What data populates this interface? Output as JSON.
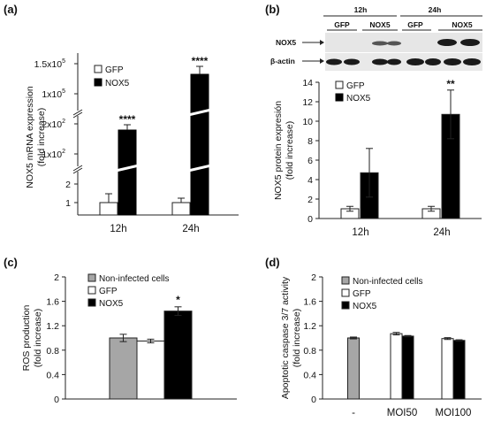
{
  "panels": {
    "a": {
      "label": "(a)",
      "ylabel_line1": "NOX5 mRNA expression",
      "ylabel_line2": "(fold increase)",
      "ticks_upper": [
        {
          "base": "1.5x10",
          "exp": "5"
        },
        {
          "base": "1x10",
          "exp": "5"
        }
      ],
      "ticks_middle": [
        {
          "base": "2x10",
          "exp": "2"
        },
        {
          "base": "1x10",
          "exp": "2"
        }
      ],
      "ticks_lower": [
        "2",
        "1"
      ]
    },
    "b": {
      "label": "(b)",
      "ylabel_line1": "NOX5 protein expresión",
      "ylabel_line2": "(fold increase)",
      "blot_time_12": "12h",
      "blot_time_24": "24h",
      "blot_lane_gfp": "GFP",
      "blot_lane_nox5": "NOX5",
      "blot_row_nox5": "NOX5",
      "blot_row_actin": "β-actin"
    },
    "c": {
      "label": "(c)",
      "ylabel_line1": "ROS production",
      "ylabel_line2": "(fold increase)"
    },
    "d": {
      "label": "(d)",
      "ylabel_line1": "Apoptotic caspase 3/7 activity",
      "ylabel_line2": "(fold increase)"
    }
  },
  "colors": {
    "gfp": "#ffffff",
    "nox5": "#000000",
    "non_infected": "#a6a6a6"
  },
  "chart_data": [
    {
      "panel": "a",
      "type": "bar",
      "axis_type": "broken",
      "categories": [
        "12h",
        "24h"
      ],
      "series": [
        {
          "name": "GFP",
          "values": [
            1.0,
            1.0
          ],
          "errors": [
            0.5,
            0.25
          ]
        },
        {
          "name": "NOX5",
          "values": [
            185,
            132000
          ],
          "errors": [
            12,
            14000
          ]
        }
      ],
      "annotations": [
        "****",
        "****"
      ],
      "ylim": [
        0,
        150000
      ],
      "yticks": [
        "1",
        "2",
        "1x10^2",
        "2x10^2",
        "1x10^5",
        "1.5x10^5"
      ],
      "legend_position": "upper-left"
    },
    {
      "panel": "b",
      "type": "bar",
      "categories": [
        "12h",
        "24h"
      ],
      "series": [
        {
          "name": "GFP",
          "values": [
            1.0,
            1.0
          ],
          "errors": [
            0.25,
            0.25
          ]
        },
        {
          "name": "NOX5",
          "values": [
            4.7,
            10.7
          ],
          "errors": [
            2.5,
            2.5
          ]
        }
      ],
      "annotations": [
        "",
        "**"
      ],
      "ylim": [
        0,
        14
      ],
      "yticks": [
        0,
        2,
        4,
        6,
        8,
        10,
        12,
        14
      ],
      "legend_position": "upper-left"
    },
    {
      "panel": "c",
      "type": "bar",
      "categories": [
        ""
      ],
      "series": [
        {
          "name": "Non-infected cells",
          "values": [
            1.0
          ],
          "errors": [
            0.06
          ]
        },
        {
          "name": "GFP",
          "values": [
            0.95
          ],
          "errors": [
            0.03
          ]
        },
        {
          "name": "NOX5",
          "values": [
            1.44
          ],
          "errors": [
            0.07
          ]
        }
      ],
      "annotations": [
        "*"
      ],
      "ylim": [
        0,
        2
      ],
      "yticks": [
        "0",
        "0.4",
        "0.8",
        "1.2",
        "1.6",
        "2"
      ],
      "legend_position": "upper-left"
    },
    {
      "panel": "d",
      "type": "bar",
      "categories": [
        "-",
        "MOI50",
        "MOI100"
      ],
      "series": [
        {
          "name": "Non-infected cells",
          "values": [
            1.0,
            null,
            null
          ],
          "errors": [
            0.015,
            null,
            null
          ]
        },
        {
          "name": "GFP",
          "values": [
            null,
            1.07,
            0.99
          ],
          "errors": [
            null,
            0.02,
            0.015
          ]
        },
        {
          "name": "NOX5",
          "values": [
            null,
            1.03,
            0.96
          ],
          "errors": [
            null,
            0.01,
            0.01
          ]
        }
      ],
      "ylim": [
        0,
        2
      ],
      "yticks": [
        "0",
        "0.4",
        "0.8",
        "1.2",
        "1.6",
        "2"
      ],
      "legend_position": "upper-left"
    }
  ]
}
